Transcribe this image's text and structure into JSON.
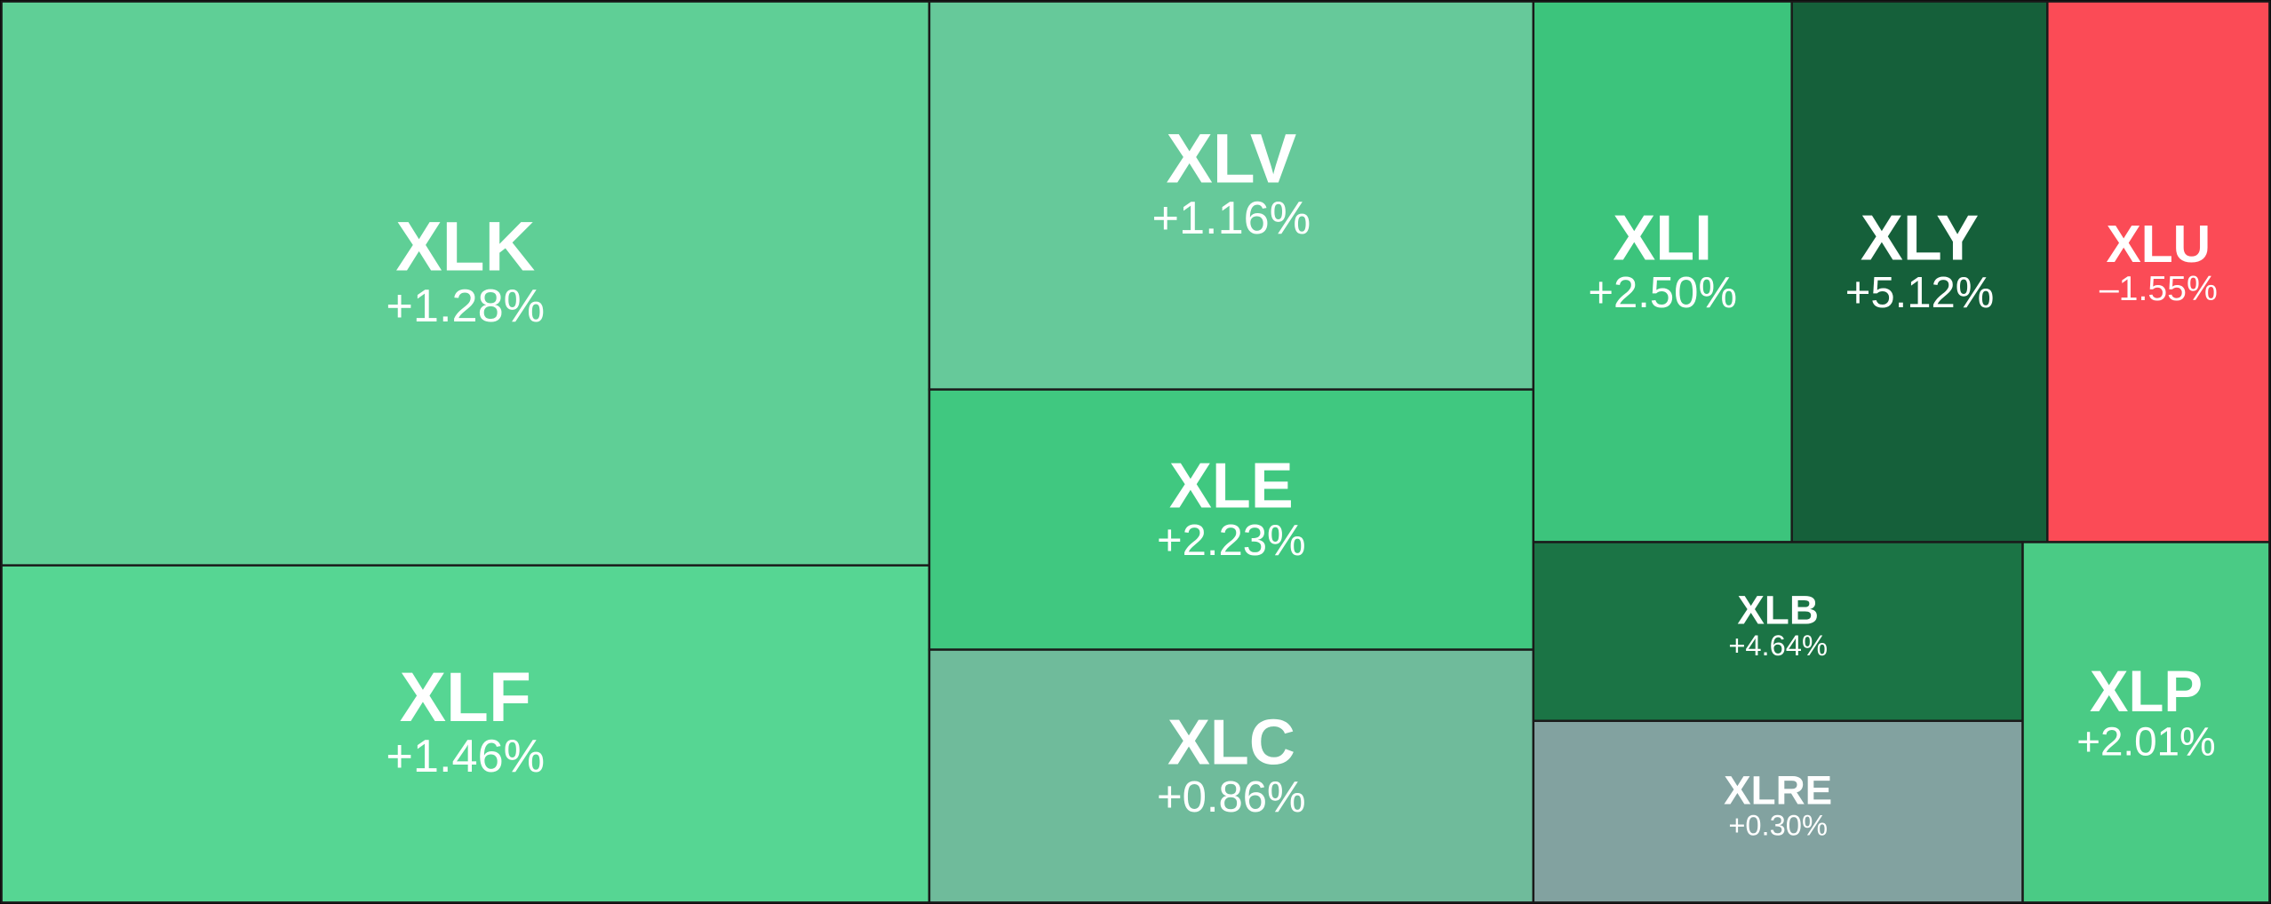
{
  "chart_data": {
    "type": "treemap",
    "categories": [
      "XLK",
      "XLF",
      "XLV",
      "XLE",
      "XLC",
      "XLI",
      "XLY",
      "XLU",
      "XLB",
      "XLRE",
      "XLP"
    ],
    "values": [
      1.28,
      1.46,
      1.16,
      2.23,
      0.86,
      2.5,
      5.12,
      -1.55,
      4.64,
      0.3,
      2.01
    ],
    "value_labels": [
      "+1.28%",
      "+1.46%",
      "+1.16%",
      "+2.23%",
      "+0.86%",
      "+2.50%",
      "+5.12%",
      "–1.55%",
      "+4.64%",
      "+0.30%",
      "+2.01%"
    ],
    "colors": [
      "#5fcf96",
      "#56d693",
      "#66c99a",
      "#40c880",
      "#6fbb9b",
      "#3cc47c",
      "#15603a",
      "#fb4b56",
      "#1b7445",
      "#82a2a0",
      "#4acb85"
    ]
  }
}
